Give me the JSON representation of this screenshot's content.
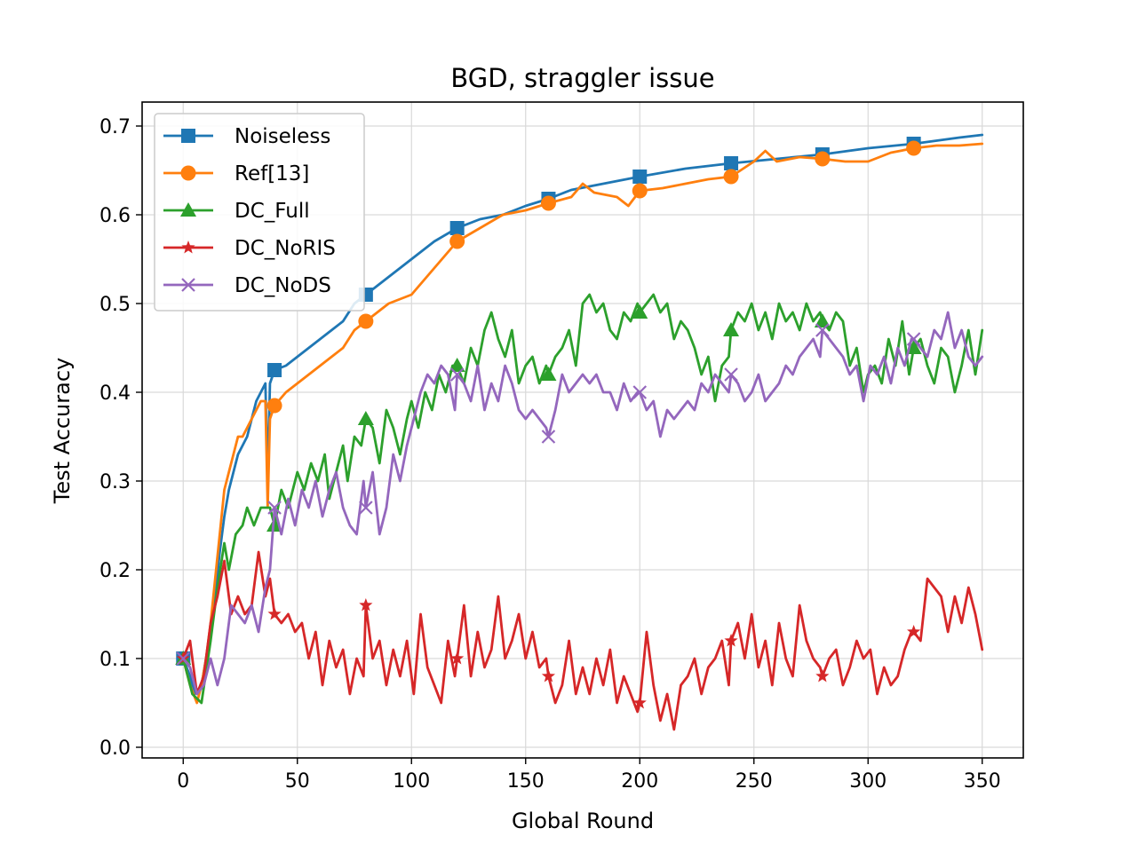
{
  "chart_data": {
    "type": "line",
    "title": "BGD, straggler issue",
    "xlabel": "Global Round",
    "ylabel": "Test Accuracy",
    "xlim": [
      -18,
      368
    ],
    "ylim": [
      -0.012,
      0.727
    ],
    "xticks": [
      0,
      50,
      100,
      150,
      200,
      250,
      300,
      350
    ],
    "yticks": [
      0.0,
      0.1,
      0.2,
      0.3,
      0.4,
      0.5,
      0.6,
      0.7
    ],
    "grid": true,
    "legend_position": "top-left",
    "series": [
      {
        "name": "Noiseless",
        "color": "#1f77b4",
        "marker": "square",
        "markers_at": [
          0,
          40,
          80,
          120,
          160,
          200,
          240,
          280,
          320
        ],
        "x": [
          0,
          3,
          5,
          8,
          10,
          12,
          14,
          16,
          18,
          20,
          22,
          24,
          26,
          28,
          30,
          32,
          34,
          36,
          37,
          38,
          40,
          45,
          50,
          55,
          60,
          65,
          70,
          75,
          80,
          90,
          100,
          110,
          120,
          130,
          140,
          150,
          160,
          170,
          180,
          190,
          200,
          220,
          240,
          260,
          280,
          300,
          320,
          340,
          350
        ],
        "y": [
          0.1,
          0.08,
          0.06,
          0.07,
          0.1,
          0.13,
          0.17,
          0.22,
          0.26,
          0.29,
          0.31,
          0.33,
          0.34,
          0.35,
          0.37,
          0.39,
          0.4,
          0.41,
          0.3,
          0.41,
          0.425,
          0.43,
          0.44,
          0.45,
          0.46,
          0.47,
          0.48,
          0.5,
          0.51,
          0.53,
          0.55,
          0.57,
          0.585,
          0.595,
          0.6,
          0.61,
          0.618,
          0.628,
          0.633,
          0.638,
          0.643,
          0.652,
          0.658,
          0.663,
          0.668,
          0.675,
          0.68,
          0.687,
          0.69
        ]
      },
      {
        "name": "Ref[13]",
        "color": "#ff7f0e",
        "marker": "circle",
        "markers_at": [
          40,
          80,
          120,
          160,
          200,
          240,
          280,
          320
        ],
        "x": [
          0,
          3,
          6,
          8,
          10,
          12,
          14,
          16,
          18,
          20,
          22,
          24,
          26,
          28,
          30,
          32,
          34,
          36,
          37,
          38,
          40,
          45,
          50,
          55,
          60,
          65,
          70,
          75,
          80,
          90,
          100,
          110,
          120,
          130,
          140,
          150,
          160,
          170,
          175,
          180,
          190,
          195,
          200,
          210,
          220,
          230,
          240,
          250,
          255,
          260,
          270,
          280,
          290,
          300,
          310,
          320,
          330,
          340,
          350
        ],
        "y": [
          0.1,
          0.07,
          0.05,
          0.07,
          0.1,
          0.14,
          0.19,
          0.24,
          0.29,
          0.31,
          0.33,
          0.35,
          0.35,
          0.36,
          0.37,
          0.38,
          0.39,
          0.39,
          0.27,
          0.37,
          0.385,
          0.4,
          0.41,
          0.42,
          0.43,
          0.44,
          0.45,
          0.47,
          0.48,
          0.5,
          0.51,
          0.54,
          0.57,
          0.585,
          0.6,
          0.605,
          0.613,
          0.62,
          0.635,
          0.625,
          0.62,
          0.61,
          0.627,
          0.63,
          0.635,
          0.64,
          0.643,
          0.66,
          0.672,
          0.66,
          0.665,
          0.663,
          0.66,
          0.66,
          0.67,
          0.675,
          0.678,
          0.678,
          0.68
        ]
      },
      {
        "name": "DC_Full",
        "color": "#2ca02c",
        "marker": "triangle",
        "markers_at": [
          0,
          40,
          80,
          120,
          160,
          200,
          240,
          280,
          320
        ],
        "x": [
          0,
          4,
          8,
          12,
          15,
          18,
          20,
          23,
          26,
          28,
          31,
          34,
          38,
          40,
          43,
          46,
          50,
          53,
          56,
          59,
          62,
          64,
          67,
          70,
          72,
          75,
          78,
          80,
          83,
          86,
          89,
          92,
          95,
          98,
          100,
          103,
          106,
          109,
          112,
          115,
          118,
          120,
          123,
          126,
          129,
          132,
          135,
          138,
          141,
          144,
          147,
          150,
          153,
          156,
          159,
          160,
          163,
          166,
          169,
          172,
          175,
          178,
          181,
          184,
          187,
          190,
          193,
          196,
          199,
          200,
          203,
          206,
          209,
          212,
          215,
          218,
          221,
          224,
          227,
          230,
          233,
          236,
          239,
          240,
          243,
          246,
          249,
          252,
          255,
          258,
          261,
          264,
          267,
          270,
          273,
          276,
          279,
          280,
          283,
          286,
          289,
          292,
          295,
          298,
          300,
          303,
          306,
          309,
          312,
          315,
          318,
          320,
          323,
          326,
          329,
          332,
          335,
          338,
          341,
          344,
          347,
          350
        ],
        "y": [
          0.1,
          0.06,
          0.05,
          0.12,
          0.18,
          0.23,
          0.2,
          0.24,
          0.25,
          0.27,
          0.25,
          0.27,
          0.27,
          0.25,
          0.29,
          0.27,
          0.31,
          0.29,
          0.32,
          0.3,
          0.33,
          0.28,
          0.31,
          0.34,
          0.3,
          0.35,
          0.34,
          0.37,
          0.36,
          0.32,
          0.38,
          0.36,
          0.33,
          0.37,
          0.39,
          0.36,
          0.4,
          0.38,
          0.42,
          0.4,
          0.43,
          0.43,
          0.41,
          0.45,
          0.43,
          0.47,
          0.49,
          0.46,
          0.44,
          0.47,
          0.41,
          0.43,
          0.44,
          0.41,
          0.43,
          0.42,
          0.44,
          0.45,
          0.47,
          0.43,
          0.5,
          0.51,
          0.49,
          0.5,
          0.47,
          0.46,
          0.49,
          0.48,
          0.5,
          0.49,
          0.5,
          0.51,
          0.49,
          0.5,
          0.46,
          0.48,
          0.47,
          0.45,
          0.42,
          0.44,
          0.39,
          0.43,
          0.44,
          0.47,
          0.49,
          0.48,
          0.5,
          0.47,
          0.49,
          0.46,
          0.5,
          0.48,
          0.49,
          0.47,
          0.5,
          0.48,
          0.49,
          0.48,
          0.47,
          0.49,
          0.48,
          0.43,
          0.45,
          0.4,
          0.42,
          0.43,
          0.41,
          0.46,
          0.43,
          0.48,
          0.42,
          0.45,
          0.46,
          0.43,
          0.41,
          0.45,
          0.44,
          0.4,
          0.43,
          0.47,
          0.42,
          0.47
        ]
      },
      {
        "name": "DC_NoRIS",
        "color": "#d62728",
        "marker": "star",
        "markers_at": [
          0,
          40,
          80,
          120,
          160,
          200,
          240,
          280,
          320
        ],
        "x": [
          0,
          3,
          6,
          9,
          12,
          15,
          18,
          21,
          24,
          27,
          30,
          33,
          36,
          38,
          40,
          43,
          46,
          49,
          52,
          55,
          58,
          61,
          64,
          67,
          70,
          73,
          76,
          79,
          80,
          83,
          86,
          89,
          92,
          95,
          98,
          101,
          104,
          107,
          110,
          113,
          116,
          119,
          120,
          123,
          126,
          129,
          132,
          135,
          138,
          141,
          144,
          147,
          150,
          153,
          156,
          159,
          160,
          163,
          166,
          169,
          172,
          175,
          178,
          181,
          184,
          187,
          190,
          193,
          196,
          199,
          200,
          203,
          206,
          209,
          212,
          215,
          218,
          221,
          224,
          227,
          230,
          233,
          236,
          239,
          240,
          243,
          246,
          249,
          252,
          255,
          258,
          261,
          264,
          267,
          270,
          273,
          276,
          279,
          280,
          283,
          286,
          289,
          292,
          295,
          298,
          301,
          304,
          307,
          310,
          313,
          316,
          319,
          320,
          323,
          326,
          329,
          332,
          335,
          338,
          341,
          344,
          347,
          350
        ],
        "y": [
          0.1,
          0.12,
          0.06,
          0.08,
          0.14,
          0.17,
          0.21,
          0.15,
          0.17,
          0.15,
          0.16,
          0.22,
          0.17,
          0.19,
          0.15,
          0.14,
          0.15,
          0.13,
          0.14,
          0.1,
          0.13,
          0.07,
          0.12,
          0.09,
          0.11,
          0.06,
          0.1,
          0.08,
          0.16,
          0.1,
          0.12,
          0.07,
          0.11,
          0.08,
          0.12,
          0.06,
          0.15,
          0.09,
          0.07,
          0.05,
          0.12,
          0.08,
          0.1,
          0.16,
          0.08,
          0.13,
          0.09,
          0.11,
          0.17,
          0.1,
          0.12,
          0.15,
          0.1,
          0.13,
          0.09,
          0.1,
          0.08,
          0.05,
          0.07,
          0.12,
          0.06,
          0.09,
          0.06,
          0.1,
          0.07,
          0.11,
          0.05,
          0.08,
          0.06,
          0.04,
          0.05,
          0.13,
          0.07,
          0.03,
          0.06,
          0.02,
          0.07,
          0.08,
          0.1,
          0.06,
          0.09,
          0.1,
          0.12,
          0.07,
          0.12,
          0.14,
          0.1,
          0.15,
          0.09,
          0.12,
          0.07,
          0.14,
          0.1,
          0.08,
          0.16,
          0.12,
          0.1,
          0.09,
          0.08,
          0.1,
          0.11,
          0.07,
          0.09,
          0.12,
          0.1,
          0.11,
          0.06,
          0.09,
          0.07,
          0.08,
          0.11,
          0.13,
          0.13,
          0.12,
          0.19,
          0.18,
          0.17,
          0.13,
          0.17,
          0.14,
          0.18,
          0.15,
          0.11
        ]
      },
      {
        "name": "DC_NoDS",
        "color": "#9467bd",
        "marker": "x",
        "markers_at": [
          0,
          40,
          80,
          120,
          160,
          200,
          240,
          280,
          320
        ],
        "x": [
          0,
          3,
          6,
          9,
          12,
          15,
          18,
          21,
          24,
          27,
          30,
          33,
          36,
          38,
          40,
          43,
          46,
          49,
          52,
          55,
          58,
          61,
          64,
          67,
          70,
          73,
          76,
          79,
          80,
          83,
          86,
          89,
          92,
          95,
          98,
          101,
          104,
          107,
          110,
          113,
          116,
          119,
          120,
          123,
          126,
          129,
          132,
          135,
          138,
          141,
          144,
          147,
          150,
          153,
          156,
          159,
          160,
          163,
          166,
          169,
          172,
          175,
          178,
          181,
          184,
          187,
          190,
          193,
          196,
          199,
          200,
          203,
          206,
          209,
          212,
          215,
          218,
          221,
          224,
          227,
          230,
          233,
          236,
          239,
          240,
          243,
          246,
          249,
          252,
          255,
          258,
          261,
          264,
          267,
          270,
          273,
          276,
          279,
          280,
          283,
          286,
          289,
          292,
          295,
          298,
          301,
          304,
          307,
          310,
          313,
          316,
          319,
          320,
          323,
          326,
          329,
          332,
          335,
          338,
          341,
          344,
          347,
          350
        ],
        "y": [
          0.1,
          0.09,
          0.06,
          0.07,
          0.1,
          0.07,
          0.1,
          0.16,
          0.15,
          0.14,
          0.16,
          0.13,
          0.18,
          0.2,
          0.27,
          0.24,
          0.28,
          0.25,
          0.29,
          0.27,
          0.3,
          0.26,
          0.29,
          0.31,
          0.27,
          0.25,
          0.24,
          0.3,
          0.27,
          0.31,
          0.24,
          0.27,
          0.33,
          0.3,
          0.34,
          0.37,
          0.4,
          0.42,
          0.41,
          0.43,
          0.42,
          0.38,
          0.42,
          0.41,
          0.39,
          0.43,
          0.38,
          0.41,
          0.39,
          0.43,
          0.41,
          0.38,
          0.37,
          0.38,
          0.37,
          0.36,
          0.35,
          0.38,
          0.42,
          0.4,
          0.41,
          0.42,
          0.41,
          0.42,
          0.4,
          0.4,
          0.38,
          0.41,
          0.39,
          0.4,
          0.4,
          0.38,
          0.39,
          0.35,
          0.38,
          0.37,
          0.38,
          0.39,
          0.38,
          0.41,
          0.4,
          0.42,
          0.41,
          0.4,
          0.42,
          0.41,
          0.39,
          0.4,
          0.42,
          0.39,
          0.4,
          0.41,
          0.43,
          0.42,
          0.44,
          0.45,
          0.46,
          0.44,
          0.47,
          0.46,
          0.45,
          0.44,
          0.42,
          0.43,
          0.39,
          0.43,
          0.42,
          0.44,
          0.41,
          0.45,
          0.43,
          0.46,
          0.46,
          0.45,
          0.44,
          0.47,
          0.46,
          0.49,
          0.45,
          0.47,
          0.44,
          0.43,
          0.44
        ]
      }
    ]
  }
}
